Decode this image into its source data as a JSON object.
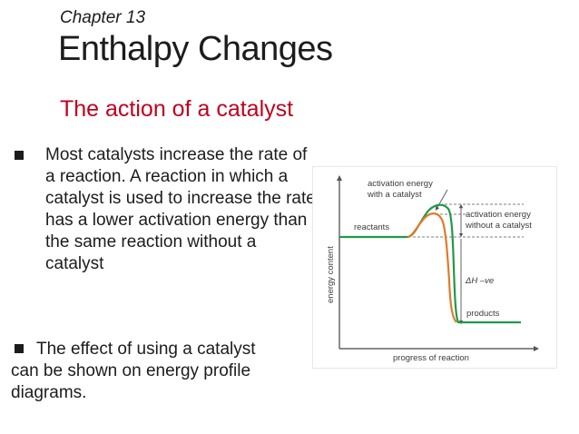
{
  "slide": {
    "chapter": "Chapter 13",
    "title": "Enthalpy Changes",
    "subtitle": "The action of a catalyst",
    "bullets": [
      "Most catalysts increase the rate of a reaction. A reaction in which a catalyst is used to increase the rate has a lower activation energy than the same reaction without a catalyst",
      "The effect of using a catalyst can be shown on energy profile diagrams."
    ]
  },
  "figure": {
    "labels": {
      "ea_with_catalyst_line1": "activation energy",
      "ea_with_catalyst_line2": "with a catalyst",
      "ea_without_catalyst_line1": "activation energy",
      "ea_without_catalyst_line2": "without a catalyst",
      "reactants": "reactants",
      "products": "products",
      "delta_h": "ΔH –ve",
      "x_axis": "progress of reaction",
      "y_axis": "energy content"
    },
    "colors": {
      "uncatalysed_curve": "#1e9a4a",
      "catalysed_curve": "#e07a2a",
      "guide_lines": "#555555"
    }
  }
}
